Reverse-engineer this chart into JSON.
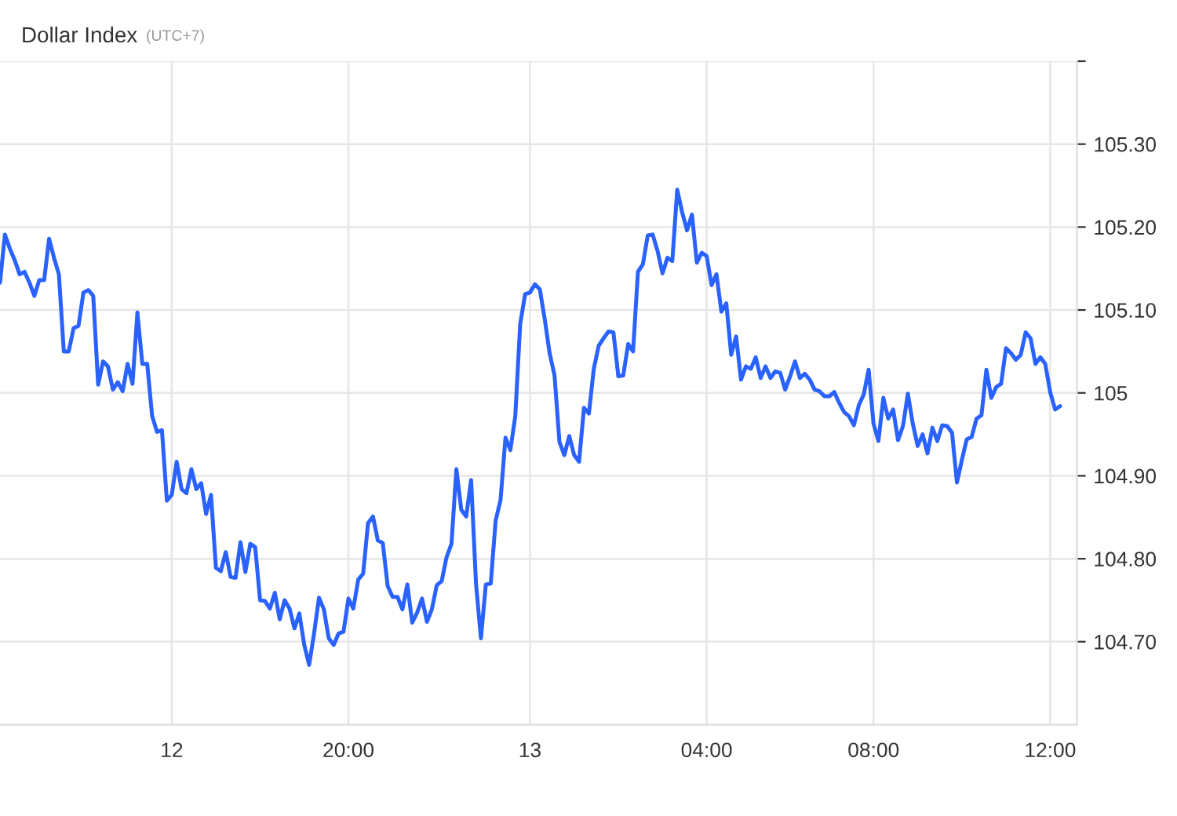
{
  "chart_data": {
    "type": "line",
    "title": "Dollar Index",
    "subtitle": "(UTC+7)",
    "categories": [
      null,
      null,
      null,
      null,
      null,
      null,
      null,
      null,
      null,
      null,
      null,
      null,
      null,
      null,
      null,
      null,
      null,
      null,
      null,
      null,
      null,
      null,
      null,
      null,
      null,
      null,
      null,
      null,
      null,
      null,
      null,
      null,
      null,
      null,
      null,
      "12",
      null,
      null,
      null,
      null,
      null,
      null,
      null,
      null,
      null,
      null,
      null,
      null,
      null,
      null,
      null,
      null,
      null,
      null,
      null,
      null,
      null,
      null,
      null,
      null,
      null,
      null,
      null,
      null,
      null,
      null,
      null,
      null,
      null,
      null,
      null,
      "20:00",
      null,
      null,
      null,
      null,
      null,
      null,
      null,
      null,
      null,
      null,
      null,
      null,
      null,
      null,
      null,
      null,
      null,
      null,
      null,
      null,
      null,
      null,
      null,
      null,
      null,
      null,
      null,
      null,
      null,
      null,
      null,
      null,
      null,
      null,
      null,
      null,
      "13",
      null,
      null,
      null,
      null,
      null,
      null,
      null,
      null,
      null,
      null,
      null,
      null,
      null,
      null,
      null,
      null,
      null,
      null,
      null,
      null,
      null,
      null,
      null,
      null,
      null,
      null,
      null,
      null,
      null,
      null,
      null,
      null,
      null,
      null,
      null,
      "04:00",
      null,
      null,
      null,
      null,
      null,
      null,
      null,
      null,
      null,
      null,
      null,
      null,
      null,
      null,
      null,
      null,
      null,
      null,
      null,
      null,
      null,
      null,
      null,
      null,
      null,
      null,
      null,
      null,
      null,
      null,
      null,
      null,
      null,
      "08:00",
      null,
      null,
      null,
      null,
      null,
      null,
      null,
      null,
      null,
      null,
      null,
      null,
      null,
      null,
      null,
      null,
      null,
      null,
      null,
      null,
      null,
      null,
      null,
      null,
      null,
      null,
      null,
      null,
      null,
      null,
      null,
      null,
      null,
      null,
      null,
      "12:00",
      null,
      null
    ],
    "series": [
      {
        "color": "#2962ff",
        "values": [
          105.133,
          105.191,
          105.174,
          105.16,
          105.143,
          105.146,
          105.133,
          105.117,
          105.136,
          105.136,
          105.186,
          105.163,
          105.143,
          105.05,
          105.05,
          105.078,
          105.081,
          105.121,
          105.124,
          105.117,
          105.01,
          105.038,
          105.032,
          105.004,
          105.013,
          105.002,
          105.035,
          105.011,
          105.097,
          105.035,
          105.035,
          104.972,
          104.953,
          104.955,
          104.87,
          104.877,
          104.917,
          104.884,
          104.879,
          104.908,
          104.884,
          104.891,
          104.854,
          104.877,
          104.789,
          104.785,
          104.808,
          104.778,
          104.777,
          104.82,
          104.784,
          104.818,
          104.814,
          104.75,
          104.749,
          104.74,
          104.759,
          104.727,
          104.75,
          104.74,
          104.716,
          104.734,
          104.696,
          104.672,
          104.71,
          104.753,
          104.739,
          104.704,
          104.696,
          104.71,
          104.712,
          104.752,
          104.74,
          104.775,
          104.782,
          104.843,
          104.851,
          104.822,
          104.819,
          104.767,
          104.754,
          104.754,
          104.739,
          104.769,
          104.723,
          104.735,
          104.752,
          104.724,
          104.739,
          104.768,
          104.773,
          104.802,
          104.818,
          104.908,
          104.859,
          104.851,
          104.895,
          104.77,
          104.704,
          104.769,
          104.77,
          104.846,
          104.871,
          104.946,
          104.931,
          104.972,
          105.083,
          105.119,
          105.121,
          105.131,
          105.125,
          105.089,
          105.048,
          105.021,
          104.941,
          104.925,
          104.948,
          104.925,
          104.917,
          104.982,
          104.975,
          105.029,
          105.057,
          105.066,
          105.074,
          105.073,
          105.02,
          105.021,
          105.059,
          105.05,
          105.146,
          105.155,
          105.19,
          105.191,
          105.171,
          105.144,
          105.163,
          105.159,
          105.245,
          105.218,
          105.196,
          105.215,
          105.157,
          105.169,
          105.165,
          105.13,
          105.143,
          105.098,
          105.108,
          105.046,
          105.068,
          105.016,
          105.032,
          105.029,
          105.043,
          105.018,
          105.032,
          105.018,
          105.026,
          105.024,
          105.004,
          105.02,
          105.038,
          105.018,
          105.023,
          105.016,
          105.004,
          105.002,
          104.996,
          104.996,
          105.001,
          104.988,
          104.977,
          104.972,
          104.961,
          104.985,
          104.998,
          105.028,
          104.963,
          104.942,
          104.994,
          104.969,
          104.98,
          104.943,
          104.96,
          104.999,
          104.963,
          104.936,
          104.95,
          104.927,
          104.958,
          104.942,
          104.961,
          104.96,
          104.952,
          104.892,
          104.919,
          104.944,
          104.947,
          104.969,
          104.973,
          105.028,
          104.994,
          105.007,
          105.011,
          105.054,
          105.048,
          105.04,
          105.046,
          105.073,
          105.066,
          105.035,
          105.043,
          105.035,
          105.001,
          104.98,
          104.984
        ]
      }
    ],
    "ylim": [
      104.6,
      105.4
    ],
    "yticks": [
      {
        "value": 104.7,
        "label": "104.70"
      },
      {
        "value": 104.8,
        "label": "104.80"
      },
      {
        "value": 104.9,
        "label": "104.90"
      },
      105,
      {
        "value": 105.1,
        "label": "105.10"
      },
      {
        "value": 105.2,
        "label": "105.20"
      },
      {
        "value": 105.3,
        "label": "105.30"
      },
      {
        "value": 105.4,
        "label": null
      }
    ],
    "grid": true,
    "legend": false,
    "marker": "none",
    "line_style": "solid"
  }
}
